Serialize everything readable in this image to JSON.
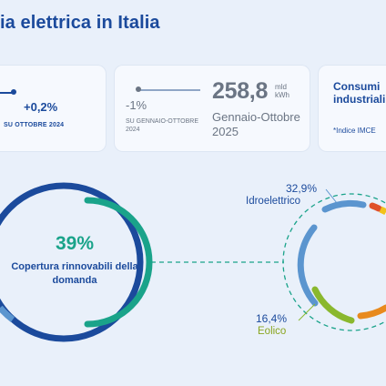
{
  "title": "ia elettrica in Italia",
  "cards": {
    "prev": {
      "delta": "+0,2%",
      "caption": "SU OTTOBRE 2024"
    },
    "total": {
      "delta": "-1%",
      "caption": "SU GENNAIO-OTTOBRE 2024",
      "value": "258,8",
      "unit_line1": "mld",
      "unit_line2": "kWh",
      "period": "Gennaio-Ottobre 2025"
    },
    "industrial": {
      "title_line1": "Consumi",
      "title_line2": "industriali",
      "note": "*Indice IMCE"
    }
  },
  "renewables": {
    "percent": "39%",
    "caption": "Copertura rinnovabili della domanda",
    "coverage_fraction": 0.39
  },
  "sources": [
    {
      "percent": "32,9%",
      "label": "Idroelettrico",
      "color": "#5b95cf"
    },
    {
      "percent": "16,4%",
      "label": "Eolico",
      "color": "#8ab82e"
    }
  ],
  "colors": {
    "brand": "#1b4a9c",
    "renewable": "#1aa38a",
    "muted": "#6b7584",
    "ring_outer": "#1b4a9c",
    "ring_light": "#5b95cf",
    "solar_orange": "#e88a1e",
    "wind_green": "#8ab82e"
  }
}
